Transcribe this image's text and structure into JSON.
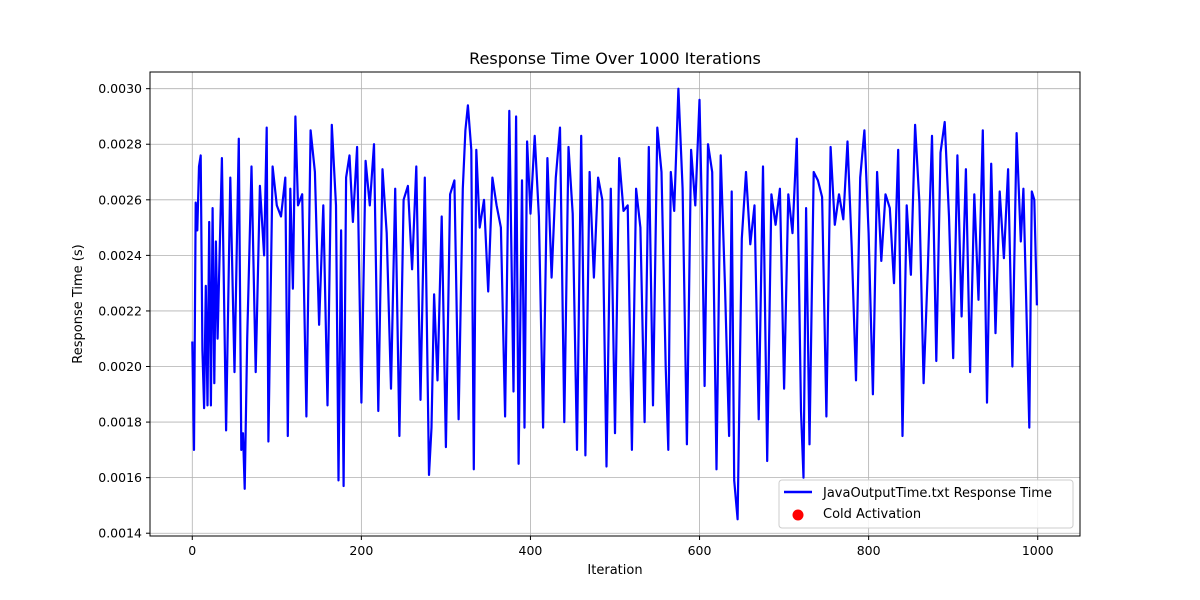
{
  "chart_data": {
    "type": "line",
    "title": "Response Time Over 1000 Iterations",
    "xlabel": "Iteration",
    "ylabel": "Response Time (s)",
    "xlim": [
      -50,
      1050
    ],
    "ylim": [
      0.00139,
      0.00306
    ],
    "xticks": [
      0,
      200,
      400,
      600,
      800,
      1000
    ],
    "xtick_labels": [
      "0",
      "200",
      "400",
      "600",
      "800",
      "1000"
    ],
    "yticks": [
      0.0014,
      0.0016,
      0.0018,
      0.002,
      0.0022,
      0.0024,
      0.0026,
      0.0028,
      0.003
    ],
    "ytick_labels": [
      "0.0014",
      "0.0016",
      "0.0018",
      "0.0020",
      "0.0022",
      "0.0024",
      "0.0026",
      "0.0028",
      "0.0030"
    ],
    "grid": true,
    "legend_position": "bottom-right",
    "series": [
      {
        "name": "JavaOutputTime.txt Response Time",
        "color": "#0000ff",
        "x": [
          0,
          2,
          4,
          6,
          8,
          10,
          12,
          14,
          16,
          18,
          20,
          22,
          24,
          26,
          28,
          30,
          35,
          40,
          45,
          50,
          55,
          58,
          60,
          62,
          65,
          70,
          75,
          80,
          85,
          88,
          90,
          95,
          100,
          105,
          110,
          113,
          116,
          119,
          122,
          125,
          130,
          135,
          140,
          145,
          150,
          155,
          160,
          165,
          170,
          173,
          176,
          179,
          182,
          186,
          190,
          195,
          200,
          205,
          210,
          215,
          220,
          225,
          230,
          235,
          240,
          245,
          250,
          255,
          260,
          265,
          270,
          275,
          280,
          283,
          286,
          290,
          295,
          300,
          305,
          310,
          315,
          320,
          323,
          326,
          330,
          333,
          336,
          340,
          345,
          350,
          355,
          360,
          365,
          370,
          375,
          380,
          383,
          386,
          390,
          393,
          396,
          400,
          405,
          410,
          415,
          420,
          425,
          430,
          435,
          440,
          445,
          450,
          455,
          460,
          465,
          470,
          475,
          480,
          485,
          490,
          495,
          500,
          505,
          510,
          515,
          520,
          525,
          530,
          535,
          540,
          545,
          550,
          555,
          560,
          563,
          566,
          570,
          575,
          580,
          585,
          590,
          595,
          600,
          603,
          606,
          610,
          615,
          620,
          625,
          630,
          635,
          638,
          641,
          645,
          650,
          655,
          660,
          665,
          670,
          675,
          680,
          685,
          690,
          695,
          700,
          705,
          710,
          715,
          720,
          723,
          726,
          730,
          735,
          740,
          745,
          750,
          755,
          760,
          765,
          770,
          775,
          780,
          785,
          790,
          795,
          800,
          805,
          810,
          815,
          820,
          825,
          830,
          835,
          840,
          845,
          850,
          855,
          860,
          865,
          870,
          875,
          880,
          885,
          890,
          895,
          900,
          905,
          910,
          915,
          920,
          925,
          930,
          935,
          940,
          945,
          950,
          955,
          960,
          965,
          970,
          975,
          980,
          983,
          986,
          990,
          993,
          996,
          999
        ],
        "y": [
          0.00209,
          0.0017,
          0.00259,
          0.00249,
          0.00272,
          0.00276,
          0.00206,
          0.00185,
          0.00229,
          0.00186,
          0.00252,
          0.00186,
          0.00257,
          0.00194,
          0.00245,
          0.0021,
          0.00275,
          0.00177,
          0.00268,
          0.00198,
          0.00282,
          0.0017,
          0.00176,
          0.00156,
          0.0021,
          0.00272,
          0.00198,
          0.00265,
          0.0024,
          0.00286,
          0.00173,
          0.00272,
          0.00258,
          0.00254,
          0.00268,
          0.00175,
          0.00264,
          0.00228,
          0.0029,
          0.00258,
          0.00262,
          0.00182,
          0.00285,
          0.0027,
          0.00215,
          0.00258,
          0.00186,
          0.00287,
          0.00258,
          0.00159,
          0.00249,
          0.00157,
          0.00268,
          0.00276,
          0.00252,
          0.00279,
          0.00187,
          0.00274,
          0.00258,
          0.0028,
          0.00184,
          0.00271,
          0.00248,
          0.00192,
          0.00264,
          0.00175,
          0.0026,
          0.00265,
          0.00235,
          0.00272,
          0.00188,
          0.00268,
          0.00161,
          0.00178,
          0.00226,
          0.00195,
          0.00254,
          0.00171,
          0.00262,
          0.00267,
          0.00181,
          0.00264,
          0.00285,
          0.00294,
          0.00278,
          0.00163,
          0.00278,
          0.0025,
          0.0026,
          0.00227,
          0.00268,
          0.00258,
          0.0025,
          0.00182,
          0.00292,
          0.00191,
          0.0029,
          0.00165,
          0.00267,
          0.00178,
          0.00281,
          0.00255,
          0.00283,
          0.00254,
          0.00178,
          0.00275,
          0.00232,
          0.00268,
          0.00286,
          0.0018,
          0.00279,
          0.00255,
          0.0017,
          0.00283,
          0.00168,
          0.0027,
          0.00232,
          0.00268,
          0.0026,
          0.00164,
          0.00264,
          0.00176,
          0.00275,
          0.00256,
          0.00258,
          0.0017,
          0.00264,
          0.0025,
          0.0018,
          0.00279,
          0.00186,
          0.00286,
          0.0027,
          0.002,
          0.0017,
          0.0027,
          0.00256,
          0.003,
          0.00264,
          0.00172,
          0.00278,
          0.00258,
          0.00296,
          0.00252,
          0.00193,
          0.0028,
          0.0027,
          0.00163,
          0.00276,
          0.0023,
          0.00175,
          0.00263,
          0.00159,
          0.00145,
          0.00246,
          0.0027,
          0.00244,
          0.00258,
          0.00181,
          0.00272,
          0.00166,
          0.00262,
          0.00251,
          0.00264,
          0.00192,
          0.00262,
          0.00248,
          0.00282,
          0.00184,
          0.0016,
          0.00257,
          0.00172,
          0.0027,
          0.00267,
          0.00261,
          0.00182,
          0.00279,
          0.00251,
          0.00262,
          0.00253,
          0.00281,
          0.00243,
          0.00195,
          0.00268,
          0.00285,
          0.00248,
          0.0019,
          0.0027,
          0.00238,
          0.00262,
          0.00257,
          0.0023,
          0.00278,
          0.00175,
          0.00258,
          0.00233,
          0.00287,
          0.00259,
          0.00194,
          0.00235,
          0.00283,
          0.00202,
          0.00277,
          0.00288,
          0.00254,
          0.00203,
          0.00276,
          0.00218,
          0.00271,
          0.00198,
          0.00262,
          0.00224,
          0.00285,
          0.00187,
          0.00273,
          0.00212,
          0.00263,
          0.00239,
          0.00271,
          0.002,
          0.00284,
          0.00245,
          0.00264,
          0.00228,
          0.00178,
          0.00263,
          0.0026,
          0.00222
        ]
      },
      {
        "name": "Cold Activation",
        "color": "#ff0000",
        "x": [],
        "y": []
      }
    ]
  }
}
